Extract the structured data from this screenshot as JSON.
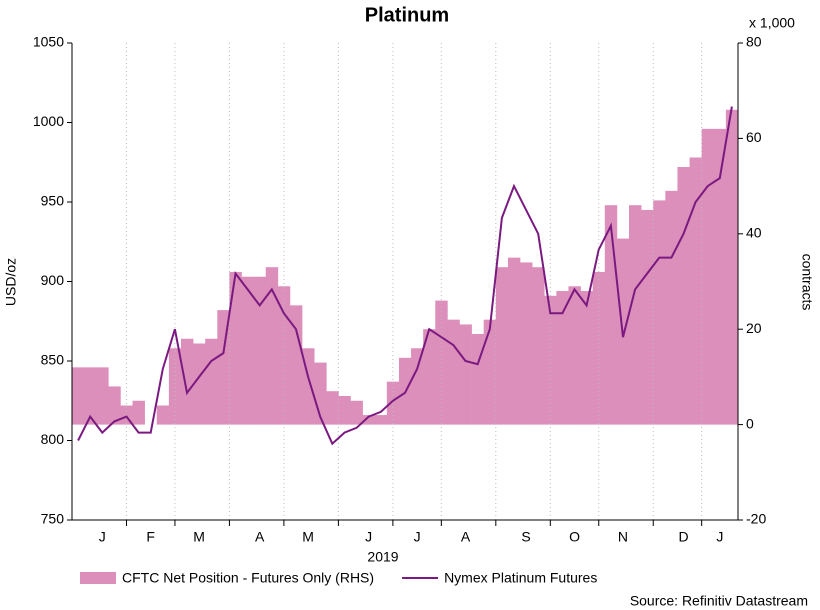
{
  "chart_data": {
    "type": "line",
    "title": "Platinum",
    "y_label": "USD/oz",
    "y2_label": "contracts",
    "y2_unit": "x 1,000",
    "x_label": "2019",
    "source": "Source: Refinitiv Datastream",
    "categories": [
      null,
      null,
      "J",
      null,
      null,
      null,
      "F",
      null,
      null,
      null,
      "M",
      null,
      null,
      null,
      null,
      "A",
      null,
      null,
      null,
      "M",
      null,
      null,
      null,
      null,
      "J",
      null,
      null,
      null,
      "J",
      null,
      null,
      null,
      "A",
      null,
      null,
      null,
      null,
      "S",
      null,
      null,
      null,
      "O",
      null,
      null,
      null,
      "N",
      null,
      null,
      null,
      null,
      "D",
      null,
      null,
      "J",
      null
    ],
    "series": [
      {
        "name": "CFTC Net Position - Futures Only (RHS)",
        "type": "area",
        "axis": "y2",
        "color": "#dc8fba",
        "values": [
          12,
          12,
          12,
          8,
          4,
          5,
          0,
          4,
          16,
          18,
          17,
          18,
          24,
          32,
          31,
          31,
          33,
          29,
          25,
          16,
          13,
          7,
          6,
          5,
          2,
          2,
          9,
          14,
          16,
          20,
          26,
          22,
          21,
          19,
          22,
          33,
          35,
          34,
          33,
          27,
          28,
          29,
          28,
          32,
          46,
          39,
          46,
          45,
          47,
          49,
          54,
          56,
          62,
          62,
          66
        ]
      },
      {
        "name": "Nymex Platinum Futures",
        "color": "#7a1a80",
        "values": [
          800,
          815,
          805,
          812,
          815,
          805,
          805,
          845,
          870,
          830,
          840,
          850,
          855,
          905,
          895,
          885,
          895,
          880,
          870,
          840,
          815,
          798,
          805,
          808,
          815,
          818,
          825,
          830,
          845,
          870,
          865,
          860,
          850,
          848,
          870,
          940,
          960,
          945,
          930,
          880,
          880,
          895,
          885,
          920,
          935,
          865,
          895,
          905,
          915,
          915,
          930,
          950,
          960,
          965,
          1010
        ]
      }
    ],
    "ylim": [
      750,
      1050
    ],
    "yticks": [
      750,
      800,
      850,
      900,
      950,
      1000,
      1050
    ],
    "y2lim": [
      -20,
      80
    ],
    "y2ticks": [
      -20,
      0,
      20,
      40,
      60,
      80
    ],
    "grid": true
  }
}
